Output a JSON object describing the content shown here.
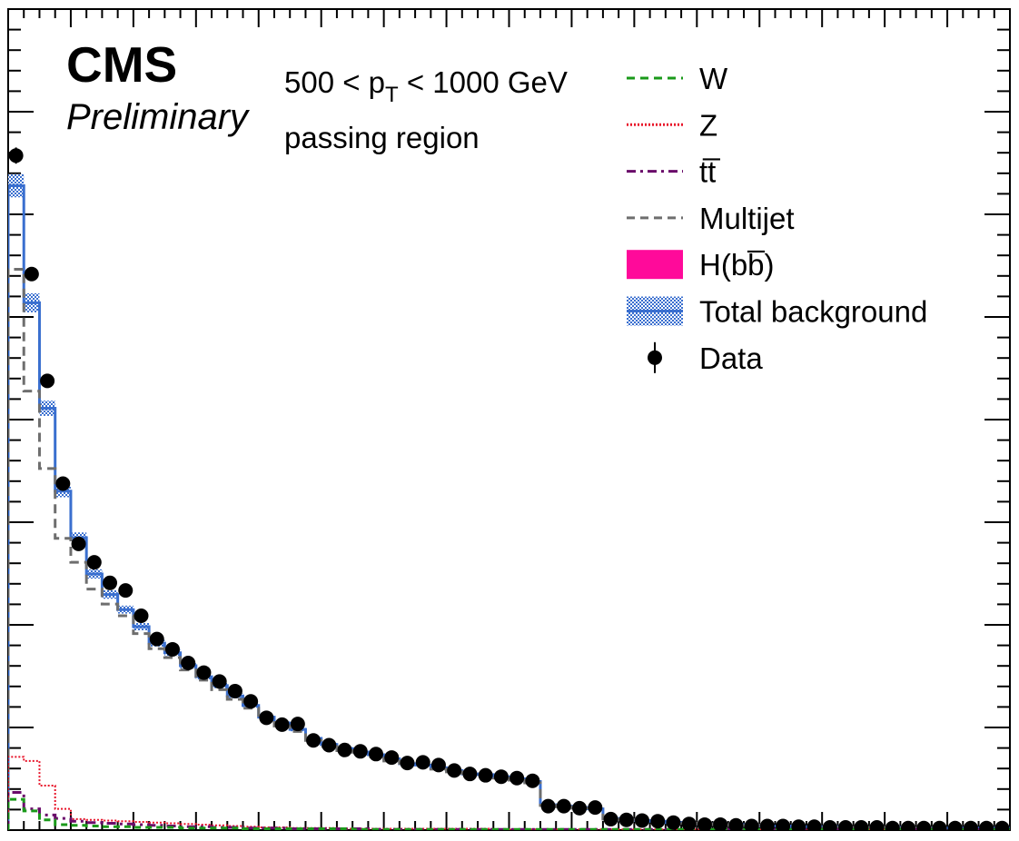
{
  "chart_data": {
    "type": "line",
    "title": "",
    "xlabel": "",
    "ylabel": "",
    "xlim": [
      0,
      64
    ],
    "ylim": [
      0,
      1.0
    ],
    "grid": false,
    "legend_position": "top-right",
    "labels": {
      "experiment": "CMS",
      "status": "Preliminary",
      "pt_pre": "500 < p",
      "pt_sub": "T",
      "pt_post": " < 1000 GeV",
      "region": "passing region"
    },
    "legend": [
      {
        "key": "W",
        "label": "W",
        "style": "dashed",
        "color": "#1a9a1a"
      },
      {
        "key": "Z",
        "label": "Z",
        "style": "dotted",
        "color": "#e8152a"
      },
      {
        "key": "tt",
        "label": "tt̅",
        "style": "dashdot",
        "color": "#6a0a6a"
      },
      {
        "key": "multijet",
        "label": "Multijet",
        "style": "dashed",
        "color": "#6e6e6e"
      },
      {
        "key": "hbb",
        "label": "H(bb̅)",
        "style": "fill",
        "color": "#ff0a9a"
      },
      {
        "key": "total",
        "label": "Total background",
        "style": "band",
        "color": "#3a6fcf"
      },
      {
        "key": "data",
        "label": "Data",
        "style": "marker",
        "color": "#000000"
      }
    ],
    "x": [
      0.5,
      1.5,
      2.5,
      3.5,
      4.5,
      5.5,
      6.5,
      7.5,
      8.5,
      9.5,
      10.5,
      11.5,
      12.5,
      13.5,
      14.5,
      15.5,
      16.5,
      17.5,
      18.5,
      19.5,
      20.5,
      21.5,
      22.5,
      23.5,
      24.5,
      25.5,
      26.5,
      27.5,
      28.5,
      29.5,
      30.5,
      31.5,
      32.5,
      33.5,
      34.5,
      35.5,
      36.5,
      37.5,
      38.5,
      39.5,
      40.5,
      41.5,
      42.5,
      43.5,
      44.5,
      45.5,
      46.5,
      47.5,
      48.5,
      49.5,
      50.5,
      51.5,
      52.5,
      53.5,
      54.5,
      55.5,
      56.5,
      57.5,
      58.5,
      59.5,
      60.5,
      61.5,
      62.5,
      63.5
    ],
    "series": [
      {
        "name": "Data",
        "values": [
          0.985,
          0.812,
          0.656,
          0.506,
          0.418,
          0.391,
          0.361,
          0.35,
          0.313,
          0.279,
          0.264,
          0.244,
          0.23,
          0.217,
          0.203,
          0.188,
          0.164,
          0.154,
          0.155,
          0.131,
          0.124,
          0.117,
          0.115,
          0.111,
          0.106,
          0.098,
          0.099,
          0.095,
          0.087,
          0.082,
          0.08,
          0.078,
          0.076,
          0.072,
          0.035,
          0.035,
          0.032,
          0.033,
          0.016,
          0.015,
          0.014,
          0.013,
          0.011,
          0.009,
          0.008,
          0.008,
          0.007,
          0.006,
          0.006,
          0.006,
          0.005,
          0.005,
          0.004,
          0.004,
          0.004,
          0.004,
          0.003,
          0.003,
          0.003,
          0.003,
          0.003,
          0.003,
          0.003,
          0.003
        ]
      },
      {
        "name": "Total background",
        "values": [
          0.941,
          0.77,
          0.616,
          0.495,
          0.427,
          0.374,
          0.344,
          0.322,
          0.297,
          0.273,
          0.259,
          0.24,
          0.224,
          0.211,
          0.196,
          0.182,
          0.165,
          0.156,
          0.147,
          0.134,
          0.125,
          0.119,
          0.114,
          0.11,
          0.104,
          0.097,
          0.095,
          0.091,
          0.087,
          0.082,
          0.081,
          0.078,
          0.075,
          0.071,
          0.037,
          0.035,
          0.033,
          0.031,
          0.017,
          0.015,
          0.014,
          0.013,
          0.011,
          0.01,
          0.009,
          0.008,
          0.008,
          0.007,
          0.006,
          0.006,
          0.005,
          0.005,
          0.005,
          0.004,
          0.004,
          0.004,
          0.004,
          0.003,
          0.003,
          0.003,
          0.003,
          0.003,
          0.003,
          0.003
        ]
      },
      {
        "name": "Multijet",
        "values": [
          0.819,
          0.641,
          0.528,
          0.426,
          0.391,
          0.352,
          0.33,
          0.313,
          0.287,
          0.265,
          0.252,
          0.234,
          0.219,
          0.205,
          0.191,
          0.178,
          0.162,
          0.152,
          0.144,
          0.131,
          0.122,
          0.116,
          0.111,
          0.107,
          0.101,
          0.095,
          0.093,
          0.089,
          0.085,
          0.08,
          0.079,
          0.076,
          0.073,
          0.069,
          0.036,
          0.034,
          0.032,
          0.03,
          0.016,
          0.015,
          0.014,
          0.012,
          0.011,
          0.01,
          0.009,
          0.008,
          0.007,
          0.007,
          0.006,
          0.006,
          0.005,
          0.005,
          0.004,
          0.004,
          0.004,
          0.004,
          0.003,
          0.003,
          0.003,
          0.003,
          0.003,
          0.003,
          0.003,
          0.003
        ]
      },
      {
        "name": "Z",
        "values": [
          0.107,
          0.101,
          0.065,
          0.031,
          0.016,
          0.015,
          0.014,
          0.013,
          0.012,
          0.011,
          0.01,
          0.009,
          0.008,
          0.007,
          0.006,
          0.005,
          0.004,
          0.004,
          0.003,
          0.003,
          0.003,
          0.002,
          0.002,
          0.002,
          0.002,
          0.002,
          0.002,
          0.002,
          0.002,
          0.002,
          0.002,
          0.001,
          0.001,
          0.001,
          0.001,
          0.001,
          0.001,
          0.001,
          0.001,
          0.001,
          0.001,
          0.001,
          0.001,
          0.001,
          0.001,
          0.001,
          0.001,
          0.001,
          0.001,
          0.001,
          0.001,
          0.001,
          0.001,
          0.001,
          0.001,
          0.001,
          0.001,
          0.001,
          0.001,
          0.001,
          0.001,
          0.001,
          0.001,
          0.001
        ]
      },
      {
        "name": "W",
        "values": [
          0.045,
          0.028,
          0.015,
          0.008,
          0.007,
          0.006,
          0.005,
          0.005,
          0.004,
          0.004,
          0.004,
          0.003,
          0.003,
          0.003,
          0.003,
          0.002,
          0.002,
          0.002,
          0.002,
          0.002,
          0.002,
          0.002,
          0.001,
          0.001,
          0.001,
          0.001,
          0.001,
          0.001,
          0.001,
          0.001,
          0.001,
          0.001,
          0.001,
          0.001,
          0.001,
          0.001,
          0.001,
          0.001,
          0.001,
          0.001,
          0.001,
          0.001,
          0.001,
          0.001,
          0.001,
          0.001,
          0.001,
          0.001,
          0.001,
          0.001,
          0.001,
          0.001,
          0.001,
          0.001,
          0.001,
          0.001,
          0.001,
          0.001,
          0.001,
          0.001,
          0.001,
          0.001,
          0.001,
          0.001
        ]
      },
      {
        "name": "tt̅",
        "values": [
          0.055,
          0.031,
          0.022,
          0.017,
          0.013,
          0.011,
          0.01,
          0.009,
          0.008,
          0.007,
          0.006,
          0.005,
          0.005,
          0.004,
          0.004,
          0.003,
          0.003,
          0.003,
          0.002,
          0.002,
          0.002,
          0.002,
          0.002,
          0.001,
          0.001,
          0.001,
          0.001,
          0.001,
          0.001,
          0.001,
          0.001,
          0.001,
          0.001,
          0.001,
          0.001,
          0.001,
          0.001,
          0.001,
          0.001,
          0.001,
          0.001,
          0.001,
          0.001,
          0.001,
          0.001,
          0.001,
          0.001,
          0.001,
          0.001,
          0.001,
          0.001,
          0.001,
          0.001,
          0.001,
          0.001,
          0.001,
          0.001,
          0.001,
          0.001,
          0.001,
          0.001,
          0.001,
          0.001,
          0.001
        ]
      }
    ]
  }
}
